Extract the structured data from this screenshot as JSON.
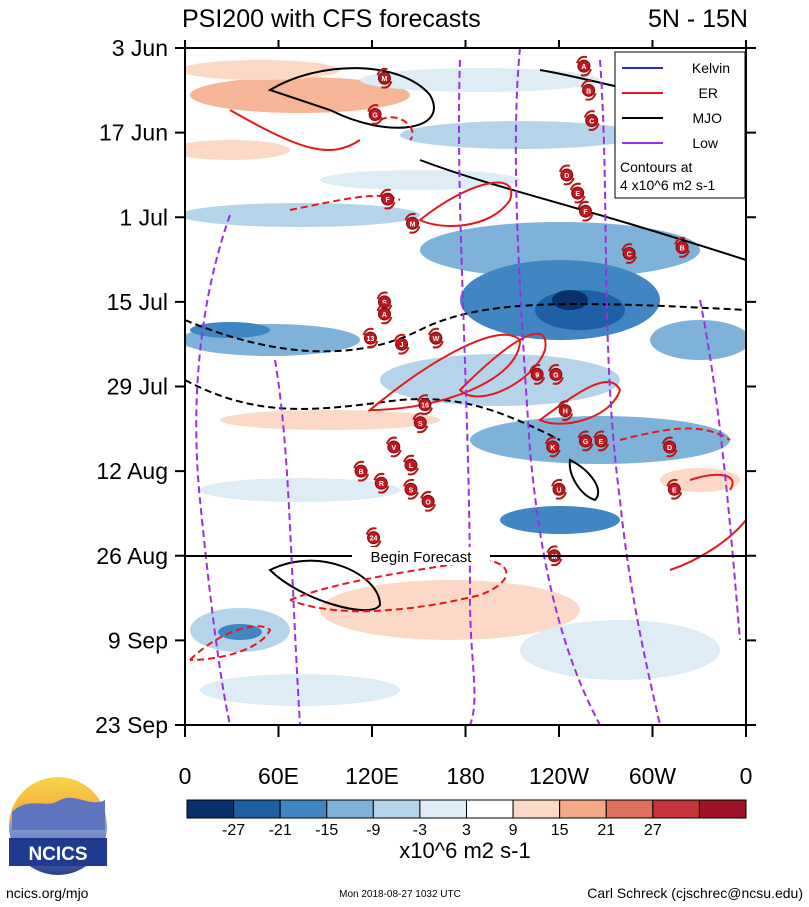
{
  "title_left": "PSI200 with CFS forecasts",
  "title_right": "5N - 15N",
  "colorbar_unit": "x10^6 m2 s-1",
  "footer": {
    "left": "ncics.org/mjo",
    "center": "Mon 2018-08-27 1032 UTC",
    "right": "Carl Schreck (cjschrec@ncsu.edu)"
  },
  "logo_text": "NCICS",
  "legend": {
    "entries": [
      {
        "label": "Kelvin",
        "color": "#2b2bd6"
      },
      {
        "label": "ER",
        "color": "#e31a1c"
      },
      {
        "label": "MJO",
        "color": "#000000"
      },
      {
        "label": "Low",
        "color": "#9b30e0"
      }
    ],
    "note_line1": "Contours at",
    "note_line2": "4 x10^6 m2 s-1"
  },
  "begin_forecast_label": "Begin Forecast",
  "chart_data": {
    "type": "heatmap",
    "title": "PSI200 with CFS forecasts",
    "region": "5N - 15N",
    "x_ticks": [
      {
        "lon": 0,
        "label": "0"
      },
      {
        "lon": 60,
        "label": "60E"
      },
      {
        "lon": 120,
        "label": "120E"
      },
      {
        "lon": 180,
        "label": "180"
      },
      {
        "lon": 240,
        "label": "120W"
      },
      {
        "lon": 300,
        "label": "60W"
      },
      {
        "lon": 360,
        "label": "0"
      }
    ],
    "y_ticks": [
      {
        "day": 0,
        "label": "3 Jun"
      },
      {
        "day": 14,
        "label": "17 Jun"
      },
      {
        "day": 28,
        "label": "1 Jul"
      },
      {
        "day": 42,
        "label": "15 Jul"
      },
      {
        "day": 56,
        "label": "29 Jul"
      },
      {
        "day": 70,
        "label": "12 Aug"
      },
      {
        "day": 84,
        "label": "26 Aug"
      },
      {
        "day": 98,
        "label": "9 Sep"
      },
      {
        "day": 112,
        "label": "23 Sep"
      }
    ],
    "xlim": [
      0,
      360
    ],
    "ylim_days": [
      0,
      112
    ],
    "forecast_start_day": 84,
    "colorbar": {
      "levels": [
        -27,
        -21,
        -15,
        -9,
        -3,
        3,
        9,
        15,
        21,
        27
      ],
      "colors": [
        "#08306b",
        "#1f5fa5",
        "#3f86c2",
        "#7eb2d8",
        "#b5d4ea",
        "#deecf6",
        "#ffffff",
        "#fbd9c6",
        "#f4a885",
        "#e0705a",
        "#c7333a",
        "#9e1226"
      ]
    },
    "storms": [
      {
        "id": "M",
        "lon": 128,
        "day": 5
      },
      {
        "id": "G",
        "lon": 122,
        "day": 11
      },
      {
        "id": "A",
        "lon": 256,
        "day": 3
      },
      {
        "id": "B",
        "lon": 259,
        "day": 7
      },
      {
        "id": "C",
        "lon": 261,
        "day": 12
      },
      {
        "id": "D",
        "lon": 245,
        "day": 21
      },
      {
        "id": "E",
        "lon": 252,
        "day": 24
      },
      {
        "id": "F",
        "lon": 257,
        "day": 27
      },
      {
        "id": "F",
        "lon": 130,
        "day": 25
      },
      {
        "id": "M",
        "lon": 146,
        "day": 29
      },
      {
        "id": "C",
        "lon": 285,
        "day": 34
      },
      {
        "id": "B",
        "lon": 319,
        "day": 33
      },
      {
        "id": "S",
        "lon": 128,
        "day": 42
      },
      {
        "id": "A",
        "lon": 128,
        "day": 44
      },
      {
        "id": "13",
        "lon": 119,
        "day": 48
      },
      {
        "id": "J",
        "lon": 139,
        "day": 49
      },
      {
        "id": "W",
        "lon": 161,
        "day": 48
      },
      {
        "id": "9",
        "lon": 226,
        "day": 54
      },
      {
        "id": "G",
        "lon": 238,
        "day": 54
      },
      {
        "id": "16",
        "lon": 154,
        "day": 59
      },
      {
        "id": "H",
        "lon": 244,
        "day": 60
      },
      {
        "id": "S",
        "lon": 151,
        "day": 62
      },
      {
        "id": "K",
        "lon": 236,
        "day": 66
      },
      {
        "id": "G",
        "lon": 257,
        "day": 65
      },
      {
        "id": "E",
        "lon": 267,
        "day": 65
      },
      {
        "id": "D",
        "lon": 311,
        "day": 66
      },
      {
        "id": "V",
        "lon": 134,
        "day": 66
      },
      {
        "id": "L",
        "lon": 145,
        "day": 69
      },
      {
        "id": "B",
        "lon": 113,
        "day": 70
      },
      {
        "id": "R",
        "lon": 126,
        "day": 72
      },
      {
        "id": "S",
        "lon": 145,
        "day": 73
      },
      {
        "id": "O",
        "lon": 156,
        "day": 75
      },
      {
        "id": "U",
        "lon": 240,
        "day": 73
      },
      {
        "id": "E",
        "lon": 314,
        "day": 73
      },
      {
        "id": "24",
        "lon": 121,
        "day": 81
      },
      {
        "id": "M",
        "lon": 237,
        "day": 84
      }
    ]
  }
}
